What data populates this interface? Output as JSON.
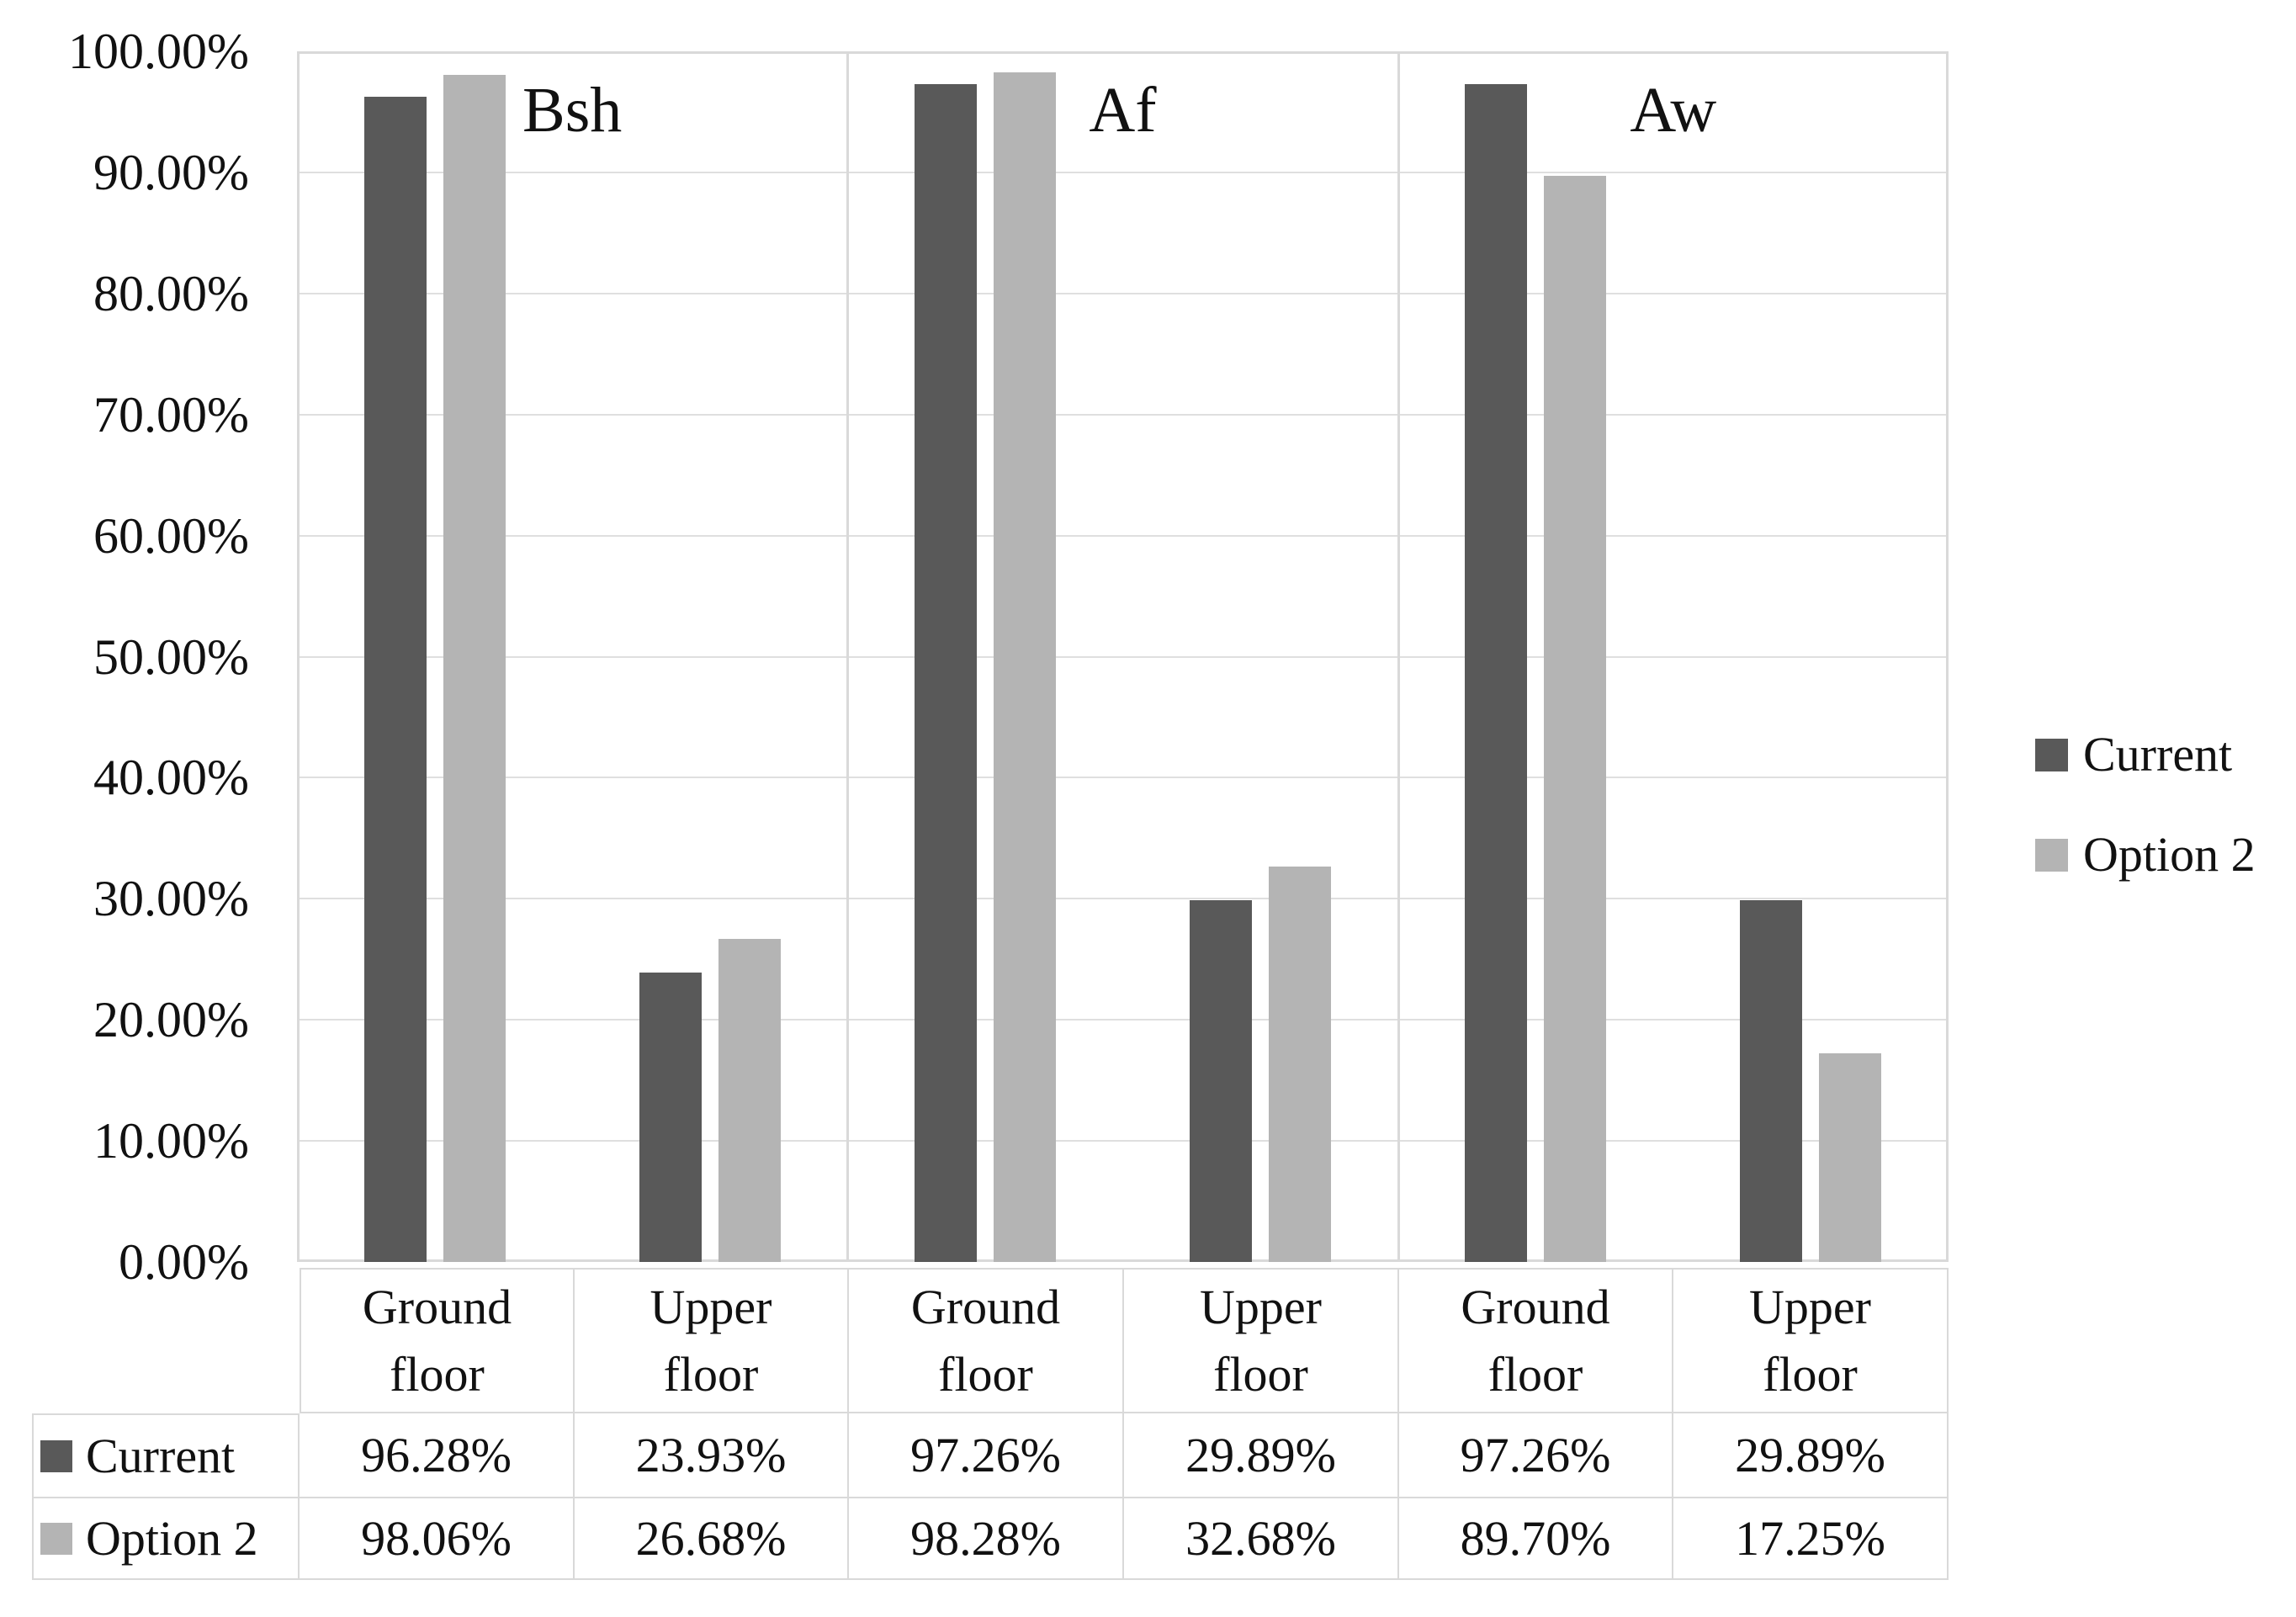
{
  "chart_data": {
    "type": "bar",
    "title": "",
    "groups": [
      "Bsh",
      "Af",
      "Aw"
    ],
    "categories": [
      "Ground floor",
      "Upper floor",
      "Ground floor",
      "Upper floor",
      "Ground floor",
      "Upper floor"
    ],
    "series": [
      {
        "name": "Current",
        "color": "#595959",
        "values": [
          96.28,
          23.93,
          97.26,
          29.89,
          97.26,
          29.89
        ]
      },
      {
        "name": "Option 2",
        "color": "#b4b4b4",
        "values": [
          98.06,
          26.68,
          98.28,
          32.68,
          89.7,
          17.25
        ]
      }
    ],
    "value_labels": [
      [
        "96.28%",
        "23.93%",
        "97.26%",
        "29.89%",
        "97.26%",
        "29.89%"
      ],
      [
        "98.06%",
        "26.68%",
        "98.28%",
        "32.68%",
        "89.70%",
        "17.25%"
      ]
    ],
    "ylabel": "",
    "xlabel": "",
    "ylim": [
      0,
      100
    ],
    "y_tick_step": 10,
    "y_tick_labels": [
      "100.00%",
      "90.00%",
      "80.00%",
      "70.00%",
      "60.00%",
      "50.00%",
      "40.00%",
      "30.00%",
      "20.00%",
      "10.00%",
      "0.00%"
    ],
    "grid": true,
    "legend_position": "right",
    "legend": [
      "Current",
      "Option 2"
    ],
    "data_table_shown": true,
    "colors": {
      "grid_line": "#dfdfdf",
      "border": "#d9d9d9",
      "series_current": "#595959",
      "series_option2": "#b4b4b4",
      "text": "#111111",
      "background": "#ffffff"
    }
  }
}
